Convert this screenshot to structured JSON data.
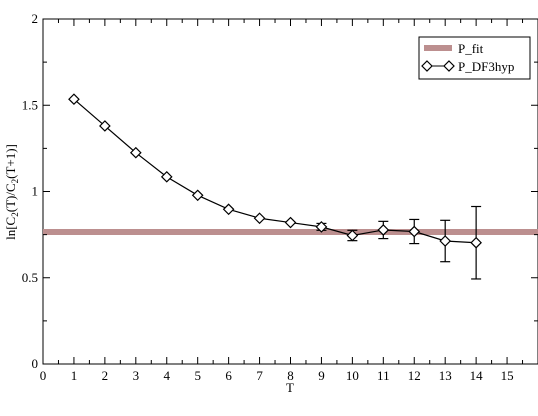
{
  "chart_data": {
    "type": "line",
    "xlabel": "T",
    "ylabel": "ln[C_2(T)/C_2(T+1)]",
    "ylabel_parts": {
      "a": "ln[C",
      "b": "2",
      "c": "(T)/C",
      "d": "2",
      "e": "(T+1)]"
    },
    "xlim": [
      0,
      16
    ],
    "ylim": [
      0,
      2
    ],
    "x_ticks": [
      0,
      1,
      2,
      3,
      4,
      5,
      6,
      7,
      8,
      9,
      10,
      11,
      12,
      13,
      14,
      15
    ],
    "y_ticks": [
      0,
      0.5,
      1,
      1.5,
      2
    ],
    "y_tick_labels": [
      "0",
      "0.5",
      "1",
      "1.5",
      "2"
    ],
    "grid": false,
    "legend_position": "top-right",
    "fit": {
      "name": "P_fit",
      "y": 0.765,
      "color": "#bc8f8f"
    },
    "series": [
      {
        "name": "P_DF3hyp",
        "marker": "diamond",
        "color": "#000000",
        "points": [
          {
            "x": 1,
            "y": 1.535,
            "err": 0
          },
          {
            "x": 2,
            "y": 1.38,
            "err": 0
          },
          {
            "x": 3,
            "y": 1.225,
            "err": 0
          },
          {
            "x": 4,
            "y": 1.085,
            "err": 0
          },
          {
            "x": 5,
            "y": 0.978,
            "err": 0
          },
          {
            "x": 6,
            "y": 0.897,
            "err": 0
          },
          {
            "x": 7,
            "y": 0.845,
            "err": 0
          },
          {
            "x": 8,
            "y": 0.82,
            "err": 0
          },
          {
            "x": 9,
            "y": 0.795,
            "err": 0.02
          },
          {
            "x": 10,
            "y": 0.745,
            "err": 0.03
          },
          {
            "x": 11,
            "y": 0.777,
            "err": 0.05
          },
          {
            "x": 12,
            "y": 0.768,
            "err": 0.07
          },
          {
            "x": 13,
            "y": 0.713,
            "err": 0.12
          },
          {
            "x": 14,
            "y": 0.703,
            "err": 0.21
          }
        ]
      }
    ]
  }
}
